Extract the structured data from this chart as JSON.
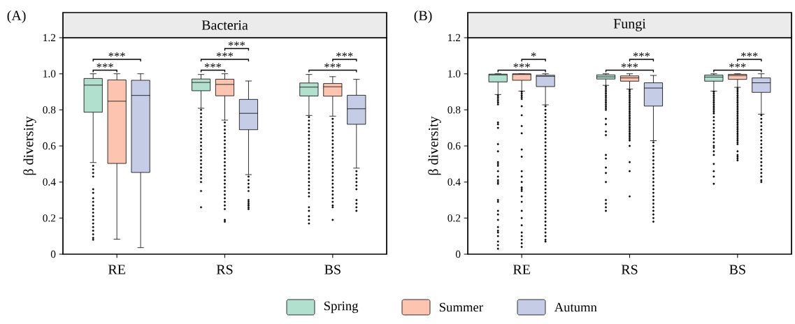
{
  "chart_data": [
    {
      "type": "box",
      "title": "Bacteria",
      "ylabel": "β diversity",
      "categories": [
        "RE",
        "RS",
        "BS"
      ],
      "ylim": [
        0,
        1.2
      ],
      "yticks": [
        0,
        0.2,
        0.4,
        0.6,
        0.8,
        {
          "value": 1,
          "label": "1.0"
        },
        1.2
      ],
      "legend": "bottom",
      "annotations": [
        "(A)",
        "***",
        "***",
        "***",
        "***",
        "***",
        "***",
        "***"
      ],
      "series": [
        {
          "name": "Spring",
          "color": "#b2e0cf",
          "boxes": [
            {
              "low": 0.508,
              "q1": 0.787,
              "median": 0.937,
              "q3": 0.974,
              "high": 1.0,
              "outliers": [
                0.49,
                0.47,
                0.45,
                0.43,
                0.36,
                0.34,
                0.31,
                0.29,
                0.27,
                0.25,
                0.23,
                0.21,
                0.19,
                0.17,
                0.15,
                0.13,
                0.11,
                0.09,
                0.08
              ]
            },
            {
              "low": 0.809,
              "q1": 0.906,
              "median": 0.952,
              "q3": 0.971,
              "high": 0.996,
              "outliers": [
                0.8,
                0.78,
                0.76,
                0.74,
                0.72,
                0.7,
                0.68,
                0.66,
                0.64,
                0.62,
                0.6,
                0.58,
                0.56,
                0.54,
                0.52,
                0.5,
                0.48,
                0.46,
                0.44,
                0.42,
                0.4,
                0.35,
                0.26
              ]
            },
            {
              "low": 0.769,
              "q1": 0.877,
              "median": 0.926,
              "q3": 0.949,
              "high": 0.996,
              "outliers": [
                0.76,
                0.74,
                0.72,
                0.7,
                0.68,
                0.66,
                0.64,
                0.62,
                0.6,
                0.58,
                0.56,
                0.54,
                0.52,
                0.5,
                0.48,
                0.46,
                0.44,
                0.42,
                0.4,
                0.38,
                0.36,
                0.34,
                0.32,
                0.26,
                0.24,
                0.21,
                0.19,
                0.17
              ]
            }
          ]
        },
        {
          "name": "Summer",
          "color": "#fdc5b0",
          "boxes": [
            {
              "low": 0.083,
              "q1": 0.503,
              "median": 0.848,
              "q3": 0.966,
              "high": 1.0
            },
            {
              "low": 0.743,
              "q1": 0.878,
              "median": 0.941,
              "q3": 0.97,
              "high": 1.0,
              "outliers": [
                0.73,
                0.71,
                0.69,
                0.67,
                0.65,
                0.63,
                0.61,
                0.59,
                0.57,
                0.55,
                0.53,
                0.51,
                0.49,
                0.47,
                0.45,
                0.43,
                0.41,
                0.39,
                0.37,
                0.35,
                0.33,
                0.31,
                0.29,
                0.27,
                0.25,
                0.19,
                0.18
              ]
            },
            {
              "low": 0.765,
              "q1": 0.876,
              "median": 0.928,
              "q3": 0.946,
              "high": 0.984,
              "outliers": [
                0.75,
                0.73,
                0.71,
                0.69,
                0.67,
                0.65,
                0.63,
                0.61,
                0.59,
                0.57,
                0.55,
                0.53,
                0.51,
                0.49,
                0.47,
                0.45,
                0.43,
                0.41,
                0.39,
                0.37,
                0.35,
                0.33,
                0.31,
                0.29,
                0.27,
                0.26,
                0.19
              ]
            }
          ]
        },
        {
          "name": "Autumn",
          "color": "#c5cde6",
          "boxes": [
            {
              "low": 0.036,
              "q1": 0.453,
              "median": 0.88,
              "q3": 0.964,
              "high": 1.0
            },
            {
              "low": 0.441,
              "q1": 0.69,
              "median": 0.781,
              "q3": 0.858,
              "high": 0.96,
              "outliers": [
                0.43,
                0.41,
                0.39,
                0.37,
                0.35,
                0.3,
                0.29,
                0.28,
                0.27,
                0.26,
                0.25
              ]
            },
            {
              "low": 0.477,
              "q1": 0.72,
              "median": 0.806,
              "q3": 0.881,
              "high": 0.969,
              "outliers": [
                0.46,
                0.44,
                0.42,
                0.4,
                0.38,
                0.36,
                0.3,
                0.28,
                0.26,
                0.24
              ]
            }
          ]
        }
      ]
    },
    {
      "type": "box",
      "title": "Fungi",
      "ylabel": "β diversity",
      "categories": [
        "RE",
        "RS",
        "BS"
      ],
      "ylim": [
        0,
        1.2
      ],
      "yticks": [
        0,
        0.2,
        0.4,
        0.6,
        0.8,
        {
          "value": 1,
          "label": "1.0"
        },
        1.2
      ],
      "annotations": [
        "(B)",
        "***",
        "*",
        "***",
        "***",
        "***",
        "***"
      ],
      "series": [
        {
          "color": "#b2e0cf",
          "boxes": [
            {
              "low": 0.885,
              "q1": 0.955,
              "median": 0.994,
              "q3": 0.998,
              "high": 1.0,
              "outliers": [
                0.88,
                0.87,
                0.86,
                0.85,
                0.84,
                0.83,
                0.73,
                0.72,
                0.7,
                0.61,
                0.57,
                0.51,
                0.5,
                0.49,
                0.46,
                0.43,
                0.41,
                0.4,
                0.39,
                0.3,
                0.29,
                0.24,
                0.22,
                0.19,
                0.15,
                0.13,
                0.12,
                0.1,
                0.07,
                0.05,
                0.03
              ]
            },
            {
              "low": 0.936,
              "q1": 0.971,
              "median": 0.983,
              "q3": 0.994,
              "high": 1.0,
              "outliers": [
                0.93,
                0.92,
                0.91,
                0.9,
                0.89,
                0.88,
                0.87,
                0.86,
                0.85,
                0.84,
                0.83,
                0.82,
                0.81,
                0.8,
                0.75,
                0.72,
                0.68,
                0.66,
                0.55,
                0.53,
                0.48,
                0.45,
                0.4,
                0.3,
                0.28,
                0.26,
                0.24
              ]
            },
            {
              "low": 0.904,
              "q1": 0.959,
              "median": 0.982,
              "q3": 0.993,
              "high": 1.0,
              "outliers": [
                0.9,
                0.89,
                0.88,
                0.87,
                0.86,
                0.85,
                0.84,
                0.83,
                0.82,
                0.81,
                0.8,
                0.79,
                0.78,
                0.76,
                0.74,
                0.72,
                0.7,
                0.68,
                0.66,
                0.64,
                0.62,
                0.6,
                0.59,
                0.57,
                0.55,
                0.5,
                0.46,
                0.43,
                0.39
              ]
            }
          ]
        },
        {
          "color": "#fdc5b0",
          "boxes": [
            {
              "low": 0.904,
              "q1": 0.964,
              "median": 0.996,
              "q3": 1.0,
              "high": 1.0,
              "outliers": [
                0.9,
                0.89,
                0.88,
                0.87,
                0.86,
                0.82,
                0.77,
                0.71,
                0.67,
                0.58,
                0.54,
                0.46,
                0.43,
                0.4,
                0.37,
                0.36,
                0.35,
                0.32,
                0.29,
                0.24,
                0.2,
                0.16,
                0.12,
                0.1,
                0.08,
                0.06,
                0.04
              ]
            },
            {
              "low": 0.915,
              "q1": 0.959,
              "median": 0.977,
              "q3": 0.988,
              "high": 1.0,
              "outliers": [
                0.91,
                0.9,
                0.89,
                0.88,
                0.87,
                0.86,
                0.85,
                0.84,
                0.83,
                0.82,
                0.81,
                0.8,
                0.79,
                0.78,
                0.77,
                0.76,
                0.75,
                0.74,
                0.73,
                0.72,
                0.71,
                0.7,
                0.69,
                0.68,
                0.67,
                0.66,
                0.65,
                0.64,
                0.63,
                0.6,
                0.51,
                0.46,
                0.32
              ]
            },
            {
              "low": 0.925,
              "q1": 0.969,
              "median": 0.99,
              "q3": 0.997,
              "high": 1.0,
              "outliers": [
                0.92,
                0.91,
                0.9,
                0.89,
                0.88,
                0.87,
                0.86,
                0.85,
                0.84,
                0.83,
                0.82,
                0.81,
                0.8,
                0.79,
                0.78,
                0.77,
                0.76,
                0.75,
                0.74,
                0.73,
                0.72,
                0.71,
                0.7,
                0.69,
                0.68,
                0.67,
                0.66,
                0.65,
                0.64,
                0.63,
                0.62,
                0.61,
                0.57,
                0.55,
                0.54,
                0.53,
                0.52
              ]
            }
          ]
        },
        {
          "color": "#c5cde6",
          "boxes": [
            {
              "low": 0.828,
              "q1": 0.929,
              "median": 0.986,
              "q3": 0.992,
              "high": 1.0,
              "outliers": [
                0.82,
                0.8,
                0.78,
                0.76,
                0.74,
                0.72,
                0.7,
                0.68,
                0.66,
                0.64,
                0.62,
                0.6,
                0.58,
                0.56,
                0.54,
                0.52,
                0.5,
                0.48,
                0.46,
                0.44,
                0.42,
                0.4,
                0.38,
                0.36,
                0.34,
                0.32,
                0.3,
                0.28,
                0.26,
                0.24,
                0.22,
                0.2,
                0.18,
                0.16,
                0.14,
                0.12,
                0.1,
                0.08,
                0.07
              ]
            },
            {
              "low": 0.629,
              "q1": 0.821,
              "median": 0.921,
              "q3": 0.95,
              "high": 0.991,
              "outliers": [
                0.62,
                0.6,
                0.58,
                0.56,
                0.54,
                0.52,
                0.5,
                0.48,
                0.46,
                0.44,
                0.42,
                0.4,
                0.38,
                0.36,
                0.34,
                0.32,
                0.3,
                0.28,
                0.26,
                0.24,
                0.22,
                0.2,
                0.18
              ]
            },
            {
              "low": 0.776,
              "q1": 0.897,
              "median": 0.95,
              "q3": 0.977,
              "high": 1.0,
              "outliers": [
                0.77,
                0.75,
                0.73,
                0.71,
                0.69,
                0.67,
                0.65,
                0.63,
                0.61,
                0.59,
                0.57,
                0.55,
                0.53,
                0.51,
                0.49,
                0.47,
                0.45,
                0.43,
                0.41,
                0.4
              ]
            }
          ]
        }
      ]
    }
  ]
}
